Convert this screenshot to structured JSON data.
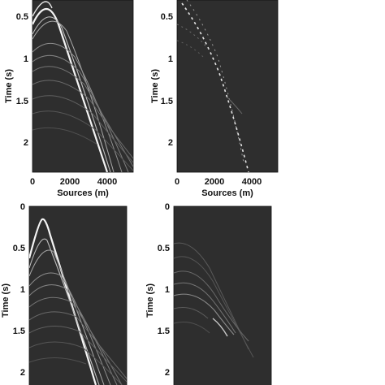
{
  "panels": [
    {
      "id": "top-left",
      "y_label": "Time (s)",
      "x_label": "Sources (m)",
      "y_ticks": [
        "0.5",
        "1",
        "1.5",
        "2"
      ],
      "x_ticks": [
        "0",
        "2000",
        "4000"
      ]
    },
    {
      "id": "top-right",
      "y_label": "Time (s)",
      "x_label": "Sources (m)",
      "y_ticks": [
        "0.5",
        "1",
        "1.5",
        "2"
      ],
      "x_ticks": [
        "0",
        "2000",
        "4000"
      ]
    },
    {
      "id": "bottom-left",
      "y_label": "Time (s)",
      "x_label": "",
      "y_ticks": [
        "0",
        "0.5",
        "1",
        "1.5",
        "2"
      ],
      "x_ticks": []
    },
    {
      "id": "bottom-right",
      "y_label": "Time (s)",
      "x_label": "",
      "y_ticks": [
        "0",
        "0.5",
        "1",
        "1.5",
        "2"
      ],
      "x_ticks": []
    }
  ],
  "colors": {
    "background": "#2e2e2e",
    "event": "#f2f2f2"
  }
}
